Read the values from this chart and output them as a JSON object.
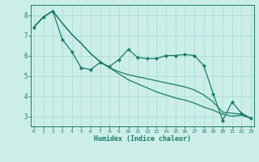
{
  "xlabel": "Humidex (Indice chaleur)",
  "bg_color": "#cceee8",
  "line_color": "#1a7a6a",
  "grid_color": "#aaddd5",
  "x_values": [
    0,
    1,
    2,
    3,
    4,
    5,
    6,
    7,
    8,
    9,
    10,
    11,
    12,
    13,
    14,
    15,
    16,
    17,
    18,
    19,
    20,
    21,
    22,
    23
  ],
  "line1": [
    7.4,
    7.9,
    8.2,
    6.8,
    6.2,
    5.4,
    5.3,
    5.65,
    5.45,
    5.8,
    6.3,
    5.9,
    5.85,
    5.85,
    6.0,
    6.0,
    6.05,
    6.0,
    5.5,
    4.1,
    2.8,
    3.7,
    3.15,
    2.9
  ],
  "line2": [
    7.4,
    7.9,
    8.2,
    7.6,
    7.05,
    6.6,
    6.1,
    5.7,
    5.4,
    5.2,
    5.05,
    4.95,
    4.85,
    4.75,
    4.65,
    4.55,
    4.45,
    4.3,
    4.05,
    3.7,
    3.2,
    3.15,
    3.1,
    2.9
  ],
  "line3": [
    7.4,
    7.9,
    8.2,
    7.6,
    7.05,
    6.6,
    6.1,
    5.7,
    5.4,
    5.1,
    4.8,
    4.6,
    4.4,
    4.2,
    4.05,
    3.9,
    3.8,
    3.65,
    3.45,
    3.3,
    3.1,
    3.0,
    3.05,
    2.9
  ],
  "ylim": [
    2.5,
    8.5
  ],
  "yticks": [
    3,
    4,
    5,
    6,
    7,
    8
  ],
  "xlim": [
    -0.3,
    23.3
  ]
}
